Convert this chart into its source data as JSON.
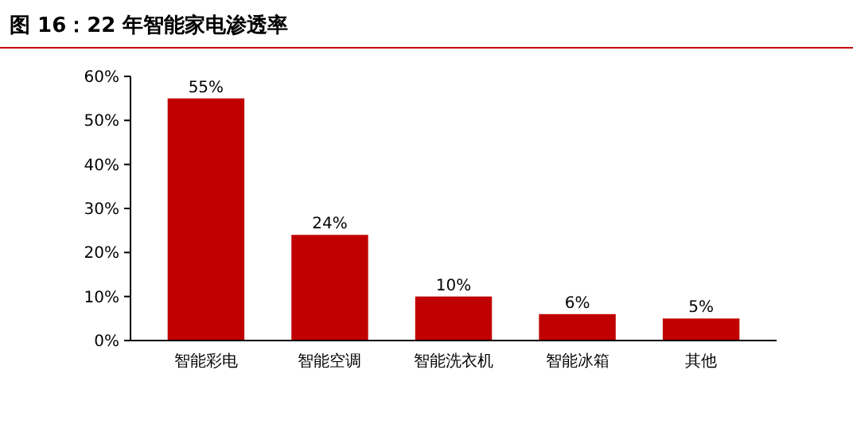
{
  "chart_data": {
    "type": "bar",
    "title": "图 16：22 年智能家电渗透率",
    "categories": [
      "智能彩电",
      "智能空调",
      "智能洗衣机",
      "智能冰箱",
      "其他"
    ],
    "values": [
      55,
      24,
      10,
      6,
      5
    ],
    "value_labels": [
      "55%",
      "24%",
      "10%",
      "6%",
      "5%"
    ],
    "color": "#c00000",
    "ylim": [
      0,
      60
    ],
    "yticks": [
      {
        "value": 0,
        "label": "0%"
      },
      {
        "value": 10,
        "label": "10%"
      },
      {
        "value": 20,
        "label": "20%"
      },
      {
        "value": 30,
        "label": "30%"
      },
      {
        "value": 40,
        "label": "40%"
      },
      {
        "value": 50,
        "label": "50%"
      },
      {
        "value": 60,
        "label": "60%"
      }
    ],
    "grid": false
  }
}
